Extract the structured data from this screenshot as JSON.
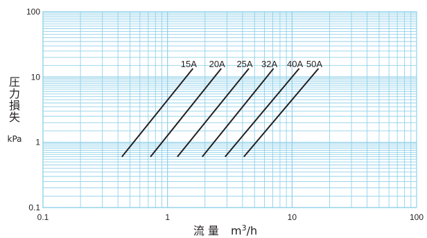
{
  "chart_data": {
    "type": "line",
    "x_scale": "log",
    "y_scale": "log",
    "xlim": [
      0.1,
      100
    ],
    "ylim": [
      0.1,
      100
    ],
    "grid": true,
    "grid_color": "#8fd0ea",
    "line_color": "#231f20",
    "x_ticks": [
      {
        "value": 0.1,
        "label": "0.1"
      },
      {
        "value": 1,
        "label": "1"
      },
      {
        "value": 10,
        "label": "10"
      },
      {
        "value": 100,
        "label": "100"
      }
    ],
    "y_ticks": [
      {
        "value": 100,
        "label": "100"
      },
      {
        "value": 10,
        "label": "10"
      },
      {
        "value": 1,
        "label": "1"
      },
      {
        "value": 0.1,
        "label": "0.1"
      }
    ],
    "xlabel": {
      "text": "流 量",
      "unit_main": "m",
      "unit_sup": "3",
      "unit_tail": "/h"
    },
    "ylabel": {
      "text": "圧力損失",
      "unit": "kPa"
    },
    "series": [
      {
        "name": "15A",
        "points": [
          [
            0.43,
            0.6
          ],
          [
            1.6,
            13.5
          ]
        ]
      },
      {
        "name": "20A",
        "points": [
          [
            0.73,
            0.6
          ],
          [
            2.7,
            13.5
          ]
        ]
      },
      {
        "name": "25A",
        "points": [
          [
            1.2,
            0.6
          ],
          [
            4.5,
            13.5
          ]
        ]
      },
      {
        "name": "32A",
        "points": [
          [
            1.9,
            0.6
          ],
          [
            7.1,
            13.5
          ]
        ]
      },
      {
        "name": "40A",
        "points": [
          [
            2.9,
            0.6
          ],
          [
            11.4,
            13.5
          ]
        ]
      },
      {
        "name": "50A",
        "points": [
          [
            4.1,
            0.6
          ],
          [
            16.3,
            13.5
          ]
        ]
      }
    ]
  }
}
